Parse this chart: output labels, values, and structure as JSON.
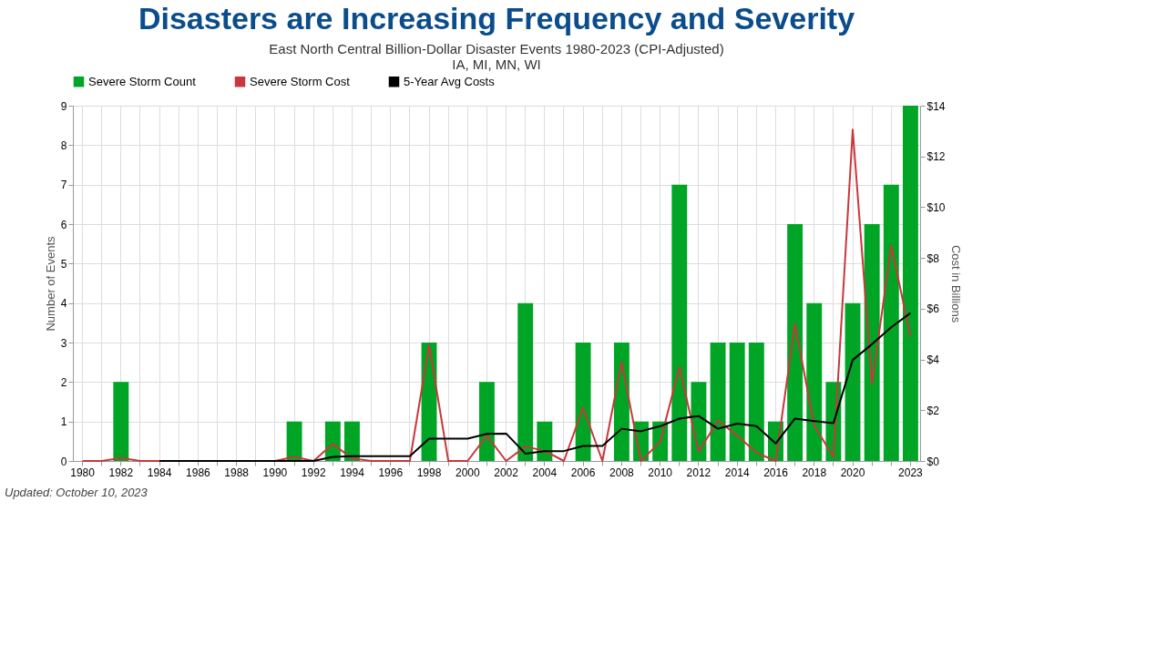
{
  "chart_data": {
    "type": "bar",
    "title": "Disasters are Increasing Frequency and Severity",
    "subtitle": "East North Central Billion-Dollar Disaster Events 1980-2023 (CPI-Adjusted)",
    "annotations": [
      "IA, MI, MN, WI",
      "Updated: October 10, 2023"
    ],
    "categories": [
      "1980",
      null,
      "1982",
      null,
      "1984",
      null,
      "1986",
      null,
      "1988",
      null,
      "1990",
      null,
      "1992",
      null,
      "1994",
      null,
      "1996",
      null,
      "1998",
      null,
      "2000",
      null,
      "2002",
      null,
      "2004",
      null,
      "2006",
      null,
      "2008",
      null,
      "2010",
      null,
      "2012",
      null,
      "2014",
      null,
      "2016",
      null,
      "2018",
      null,
      "2020",
      null,
      null,
      "2023"
    ],
    "series": [
      {
        "name": "Severe Storm Count",
        "color": "#00a526",
        "values": [
          0,
          0,
          2,
          0,
          0,
          0,
          0,
          0,
          0,
          0,
          0,
          1,
          0,
          1,
          1,
          0,
          0,
          0,
          3,
          0,
          0,
          2,
          0,
          4,
          1,
          0,
          3,
          0,
          3,
          1,
          1,
          7,
          2,
          3,
          3,
          3,
          1,
          6,
          4,
          2,
          4,
          6,
          7,
          9
        ]
      },
      {
        "name": "Severe Storm Cost",
        "type": "line",
        "axis": "y2",
        "color": "#c8383b",
        "values": [
          0,
          0,
          0.12,
          0,
          0,
          0,
          0,
          0,
          0,
          0,
          0,
          0.16,
          0,
          0.67,
          0.1,
          0,
          0,
          0,
          4.57,
          0,
          0,
          1.0,
          0,
          0.57,
          0.4,
          0,
          2.1,
          0,
          3.9,
          0,
          0.75,
          3.7,
          0.36,
          1.6,
          1.0,
          0.33,
          0,
          5.4,
          1.4,
          0.15,
          13.06,
          3.04,
          8.48,
          4.9
        ]
      },
      {
        "name": "5-Year Avg Costs",
        "type": "line",
        "axis": "y2",
        "color": "#000000",
        "values": [
          null,
          null,
          null,
          null,
          0,
          0,
          0,
          0,
          0,
          0,
          0,
          0,
          0,
          0.16,
          0.19,
          0.19,
          0.19,
          0.19,
          0.88,
          0.88,
          0.88,
          1.07,
          1.08,
          0.29,
          0.39,
          0.39,
          0.59,
          0.59,
          1.27,
          1.17,
          1.37,
          1.67,
          1.77,
          1.27,
          1.47,
          1.37,
          0.69,
          1.67,
          1.57,
          1.49,
          3.98,
          4.6,
          5.27,
          5.83
        ]
      }
    ],
    "ylabel": "Number of Events",
    "y2label": "Cost in Billions",
    "ylim": [
      0,
      9
    ],
    "yticks": [
      0,
      1,
      2,
      3,
      4,
      5,
      6,
      7,
      8,
      9
    ],
    "y2lim": [
      0,
      14
    ],
    "y2ticks": [
      {
        "value": 0,
        "label": "$0"
      },
      {
        "value": 2,
        "label": "$2"
      },
      {
        "value": 4,
        "label": "$4"
      },
      {
        "value": 6,
        "label": "$6"
      },
      {
        "value": 8,
        "label": "$8"
      },
      {
        "value": 10,
        "label": "$10"
      },
      {
        "value": 12,
        "label": "$12"
      },
      {
        "value": 14,
        "label": "$14"
      }
    ],
    "grid": true,
    "legend": "top"
  }
}
